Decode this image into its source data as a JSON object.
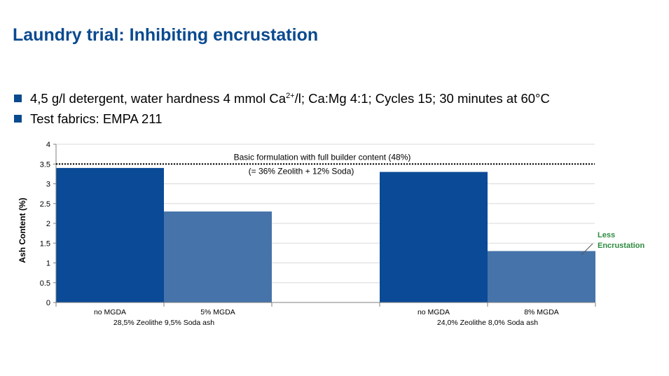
{
  "slide": {
    "title": "Laundry trial: Inhibiting encrustation",
    "bullets": [
      {
        "pre": "4,5 g/l detergent, water hardness 4 mmol Ca",
        "sup": "2+",
        "post": "/l; Ca:Mg 4:1; Cycles 15; 30 minutes at 60°C"
      },
      {
        "pre": "Test fabrics: EMPA 211",
        "sup": "",
        "post": ""
      }
    ]
  },
  "colors": {
    "title": "#0a4a8f",
    "bullet": "#0a4a8f",
    "bar_dark": "#0b4a96",
    "bar_light": "#4673aa",
    "annotation": "#2e8b3f"
  },
  "chart_data": {
    "type": "bar",
    "ylabel": "Ash Content (%)",
    "ylim": [
      0,
      4
    ],
    "yticks": [
      0,
      0.5,
      1,
      1.5,
      2,
      2.5,
      3,
      3.5,
      4
    ],
    "grid": true,
    "groups": [
      {
        "label": "28,5% Zeolithe 9,5% Soda ash",
        "bars": [
          {
            "category": "no MGDA",
            "value": 3.4,
            "color": "#0b4a96"
          },
          {
            "category": "5% MGDA",
            "value": 2.3,
            "color": "#4673aa"
          }
        ]
      },
      {
        "label": "24,0% Zeolithe 8,0% Soda ash",
        "bars": [
          {
            "category": "no MGDA",
            "value": 3.3,
            "color": "#0b4a96"
          },
          {
            "category": "8% MGDA",
            "value": 1.3,
            "color": "#4673aa"
          }
        ]
      }
    ],
    "reference_line": {
      "value": 3.5,
      "label_line1": "Basic formulation with  full builder content (48%)",
      "label_line2": "(= 36% Zeolith  + 12% Soda)"
    },
    "annotation": {
      "text_line1": "Less",
      "text_line2": "Encrustation"
    }
  }
}
